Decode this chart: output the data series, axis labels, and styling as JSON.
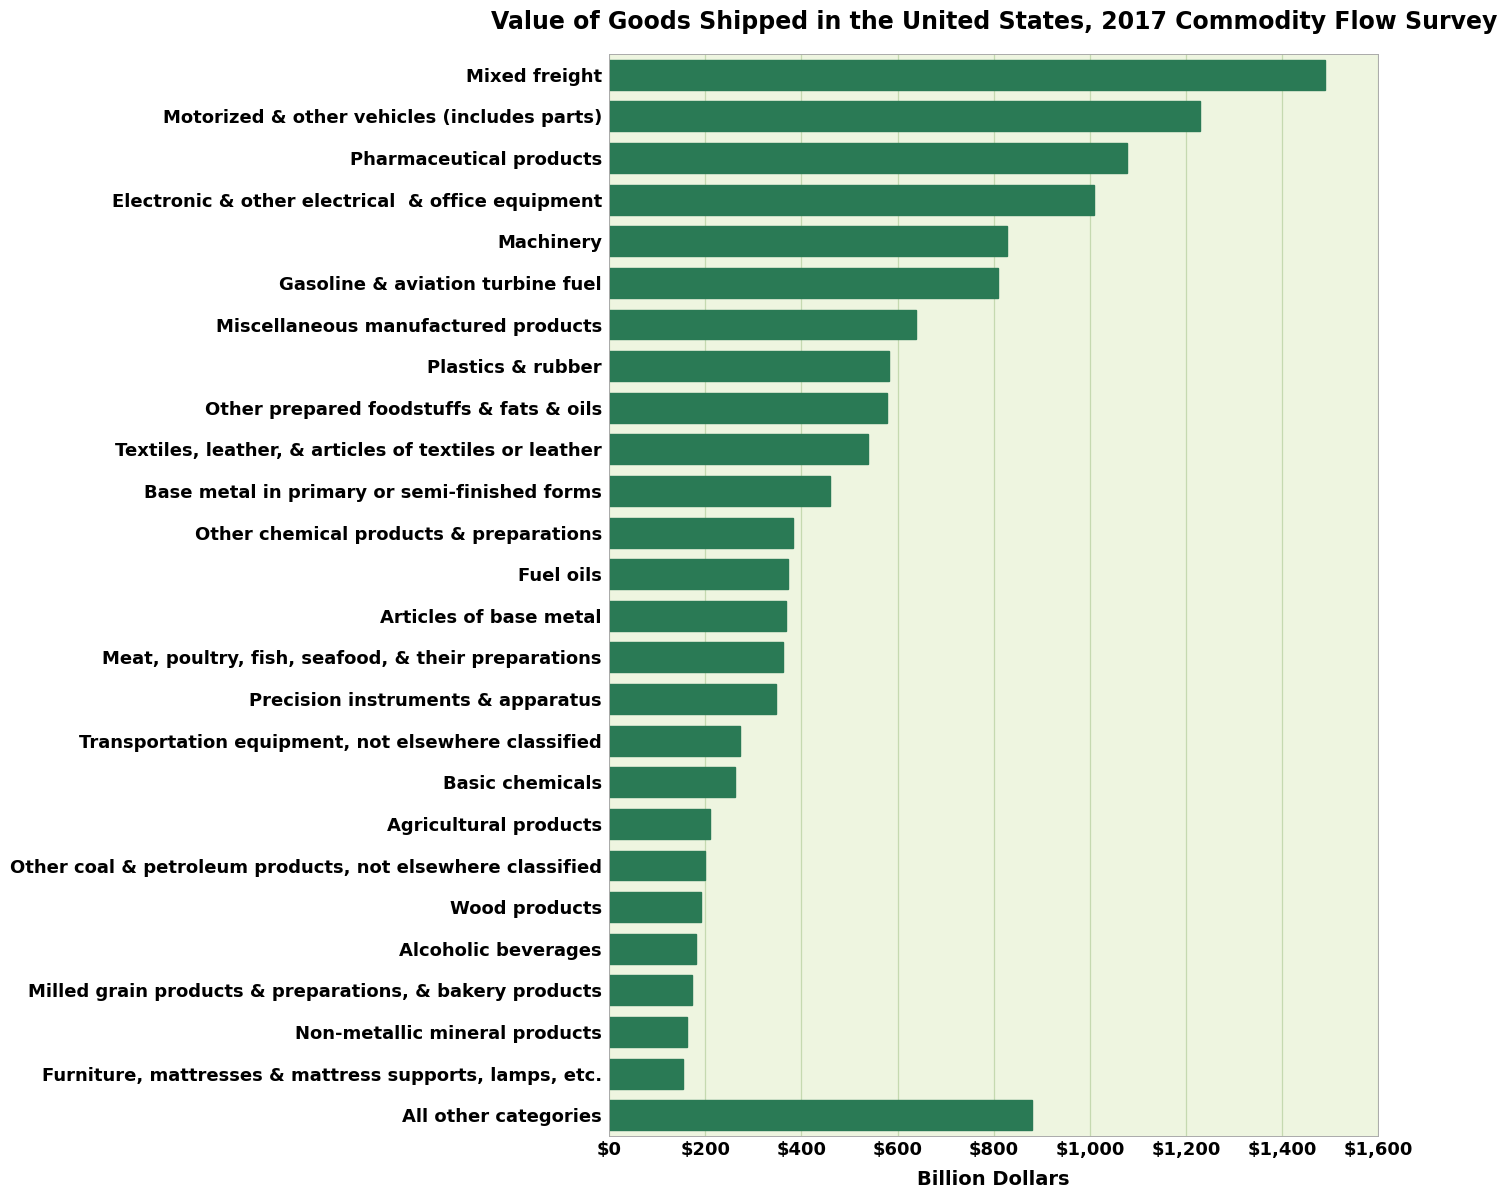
{
  "title": "Value of Goods Shipped in the United States, 2017 Commodity Flow Survey",
  "xlabel": "Billion Dollars",
  "xlim": [
    0,
    1600
  ],
  "xticks": [
    0,
    200,
    400,
    600,
    800,
    1000,
    1200,
    1400,
    1600
  ],
  "bar_color": "#2a7a55",
  "background_plot": "#eef5e0",
  "background_fig": "#ffffff",
  "grid_color": "#c5d9b0",
  "categories": [
    "All other categories",
    "Furniture, mattresses & mattress supports, lamps, etc.",
    "Non-metallic mineral products",
    "Milled grain products & preparations, & bakery products",
    "Alcoholic beverages",
    "Wood products",
    "Other coal & petroleum products, not elsewhere classified",
    "Agricultural products",
    "Basic chemicals",
    "Transportation equipment, not elsewhere classified",
    "Precision instruments & apparatus",
    "Meat, poultry, fish, seafood, & their preparations",
    "Articles of base metal",
    "Fuel oils",
    "Other chemical products & preparations",
    "Base metal in primary or semi-finished forms",
    "Textiles, leather, & articles of textiles or leather",
    "Other prepared foodstuffs & fats & oils",
    "Plastics & rubber",
    "Miscellaneous manufactured products",
    "Gasoline & aviation turbine fuel",
    "Machinery",
    "Electronic & other electrical  & office equipment",
    "Pharmaceutical products",
    "Motorized & other vehicles (includes parts)",
    "Mixed freight"
  ],
  "values": [
    880,
    155,
    162,
    173,
    182,
    192,
    200,
    210,
    263,
    272,
    348,
    362,
    368,
    373,
    382,
    460,
    538,
    578,
    583,
    638,
    808,
    828,
    1008,
    1078,
    1228,
    1488
  ],
  "label_fontsize": 13,
  "tick_fontsize": 13,
  "title_fontsize": 17,
  "xlabel_fontsize": 14,
  "bar_height": 0.72
}
